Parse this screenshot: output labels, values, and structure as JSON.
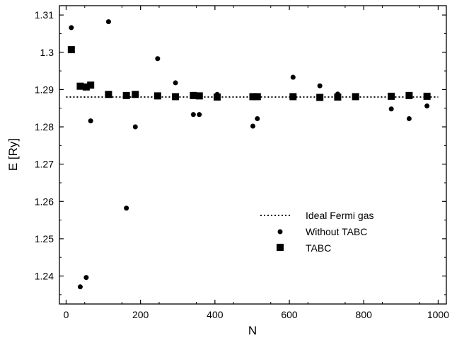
{
  "chart_data": {
    "type": "scatter",
    "title": "",
    "xlabel": "N",
    "ylabel": "E [Ry]",
    "xlim": [
      -18,
      1022
    ],
    "ylim": [
      1.2325,
      1.3125
    ],
    "xticks": [
      0,
      200,
      400,
      600,
      800,
      1000
    ],
    "xtick_labels": [
      "0",
      "200",
      "400",
      "600",
      "800",
      "1000"
    ],
    "yticks": [
      1.24,
      1.25,
      1.26,
      1.27,
      1.28,
      1.29,
      1.3,
      1.31
    ],
    "ytick_labels": [
      "1.24",
      "1.25",
      "1.26",
      "1.27",
      "1.28",
      "1.29",
      "1.3",
      "1.31"
    ],
    "grid": false,
    "legend_position": "lower-right",
    "reference_line": {
      "name": "Ideal Fermi gas",
      "y": 1.288,
      "style": "dotted"
    },
    "series": [
      {
        "name": "Without TABC",
        "marker": "circle",
        "points": [
          [
            14,
            1.3066
          ],
          [
            38,
            1.2371
          ],
          [
            54,
            1.2396
          ],
          [
            66,
            1.2816
          ],
          [
            114,
            1.3082
          ],
          [
            162,
            1.2582
          ],
          [
            186,
            1.28
          ],
          [
            246,
            1.2983
          ],
          [
            294,
            1.2918
          ],
          [
            342,
            1.2833
          ],
          [
            358,
            1.2833
          ],
          [
            406,
            1.2887
          ],
          [
            502,
            1.2802
          ],
          [
            514,
            1.2822
          ],
          [
            610,
            1.2933
          ],
          [
            682,
            1.291
          ],
          [
            730,
            1.2888
          ],
          [
            874,
            1.2848
          ],
          [
            922,
            1.2822
          ],
          [
            970,
            1.2856
          ]
        ]
      },
      {
        "name": "TABC",
        "marker": "square",
        "points": [
          [
            14,
            1.3007
          ],
          [
            38,
            1.2909
          ],
          [
            54,
            1.2907
          ],
          [
            66,
            1.2912
          ],
          [
            114,
            1.2887
          ],
          [
            162,
            1.2884
          ],
          [
            186,
            1.2887
          ],
          [
            246,
            1.2883
          ],
          [
            294,
            1.2881
          ],
          [
            342,
            1.2884
          ],
          [
            358,
            1.2883
          ],
          [
            406,
            1.288
          ],
          [
            502,
            1.2881
          ],
          [
            514,
            1.2881
          ],
          [
            610,
            1.2881
          ],
          [
            682,
            1.2879
          ],
          [
            730,
            1.288
          ],
          [
            778,
            1.2881
          ],
          [
            874,
            1.2882
          ],
          [
            922,
            1.2884
          ],
          [
            970,
            1.2882
          ]
        ]
      }
    ],
    "legend": [
      "Ideal Fermi gas",
      "Without TABC",
      "TABC"
    ]
  }
}
